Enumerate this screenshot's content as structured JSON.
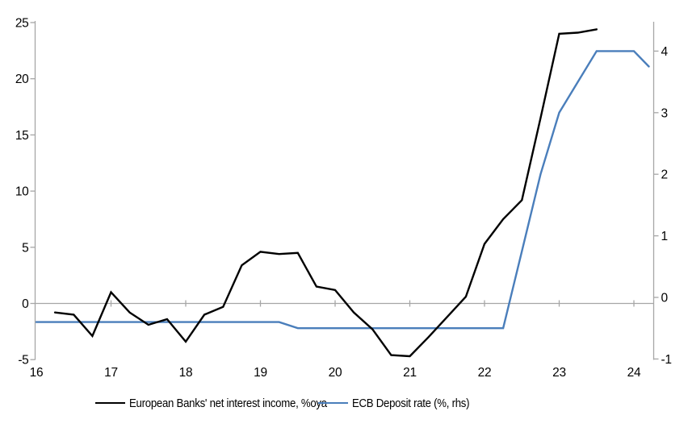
{
  "chart_data": {
    "type": "line",
    "title": "",
    "legend_position": "bottom",
    "grid": "zero-line-only",
    "x_axis": {
      "ticks": [
        16,
        17,
        18,
        19,
        20,
        21,
        22,
        23,
        24
      ],
      "range": [
        16,
        24.3
      ]
    },
    "left_axis": {
      "ticks": [
        25,
        20,
        15,
        10,
        5,
        0,
        -5
      ],
      "range": [
        -5,
        25
      ]
    },
    "right_axis": {
      "ticks": [
        4,
        3,
        2,
        1,
        0,
        -1
      ],
      "range": [
        -1,
        4.5
      ]
    },
    "colors": {
      "axis": "#a6a6a6",
      "series1": "#000000",
      "series2": "#4a7ebb"
    },
    "series": [
      {
        "name": "European Banks' net interest income, %oya",
        "color": "#000000",
        "axis": "left",
        "points": [
          [
            16.25,
            -0.8
          ],
          [
            16.5,
            -1.0
          ],
          [
            16.75,
            -2.9
          ],
          [
            17.0,
            1.0
          ],
          [
            17.25,
            -0.8
          ],
          [
            17.5,
            -1.9
          ],
          [
            17.75,
            -1.4
          ],
          [
            18.0,
            -3.4
          ],
          [
            18.25,
            -1.0
          ],
          [
            18.5,
            -0.3
          ],
          [
            18.75,
            3.4
          ],
          [
            19.0,
            4.6
          ],
          [
            19.25,
            4.4
          ],
          [
            19.5,
            4.5
          ],
          [
            19.75,
            1.5
          ],
          [
            20.0,
            1.2
          ],
          [
            20.25,
            -0.8
          ],
          [
            20.5,
            -2.3
          ],
          [
            20.75,
            -4.6
          ],
          [
            21.0,
            -4.7
          ],
          [
            21.25,
            -3.0
          ],
          [
            21.5,
            -1.2
          ],
          [
            21.75,
            0.6
          ],
          [
            22.0,
            5.3
          ],
          [
            22.25,
            7.5
          ],
          [
            22.5,
            9.2
          ],
          [
            22.75,
            16.5
          ],
          [
            23.0,
            24.0
          ],
          [
            23.25,
            24.1
          ],
          [
            23.5,
            24.4
          ]
        ]
      },
      {
        "name": "ECB Deposit rate (%, rhs)",
        "color": "#4a7ebb",
        "axis": "right",
        "points": [
          [
            16.0,
            -0.4
          ],
          [
            16.25,
            -0.4
          ],
          [
            16.5,
            -0.4
          ],
          [
            16.75,
            -0.4
          ],
          [
            17.0,
            -0.4
          ],
          [
            17.25,
            -0.4
          ],
          [
            17.5,
            -0.4
          ],
          [
            17.75,
            -0.4
          ],
          [
            18.0,
            -0.4
          ],
          [
            18.25,
            -0.4
          ],
          [
            18.5,
            -0.4
          ],
          [
            18.75,
            -0.4
          ],
          [
            19.0,
            -0.4
          ],
          [
            19.25,
            -0.4
          ],
          [
            19.5,
            -0.5
          ],
          [
            19.75,
            -0.5
          ],
          [
            20.0,
            -0.5
          ],
          [
            20.25,
            -0.5
          ],
          [
            20.5,
            -0.5
          ],
          [
            20.75,
            -0.5
          ],
          [
            21.0,
            -0.5
          ],
          [
            21.25,
            -0.5
          ],
          [
            21.5,
            -0.5
          ],
          [
            21.75,
            -0.5
          ],
          [
            22.0,
            -0.5
          ],
          [
            22.25,
            -0.5
          ],
          [
            22.5,
            0.75
          ],
          [
            22.75,
            2.0
          ],
          [
            23.0,
            3.0
          ],
          [
            23.25,
            3.5
          ],
          [
            23.5,
            4.0
          ],
          [
            23.75,
            4.0
          ],
          [
            24.0,
            4.0
          ],
          [
            24.2,
            3.75
          ]
        ]
      }
    ]
  },
  "legend": {
    "series1_label": "European Banks' net interest income, %oya",
    "series2_label": "ECB Deposit rate (%, rhs)"
  }
}
